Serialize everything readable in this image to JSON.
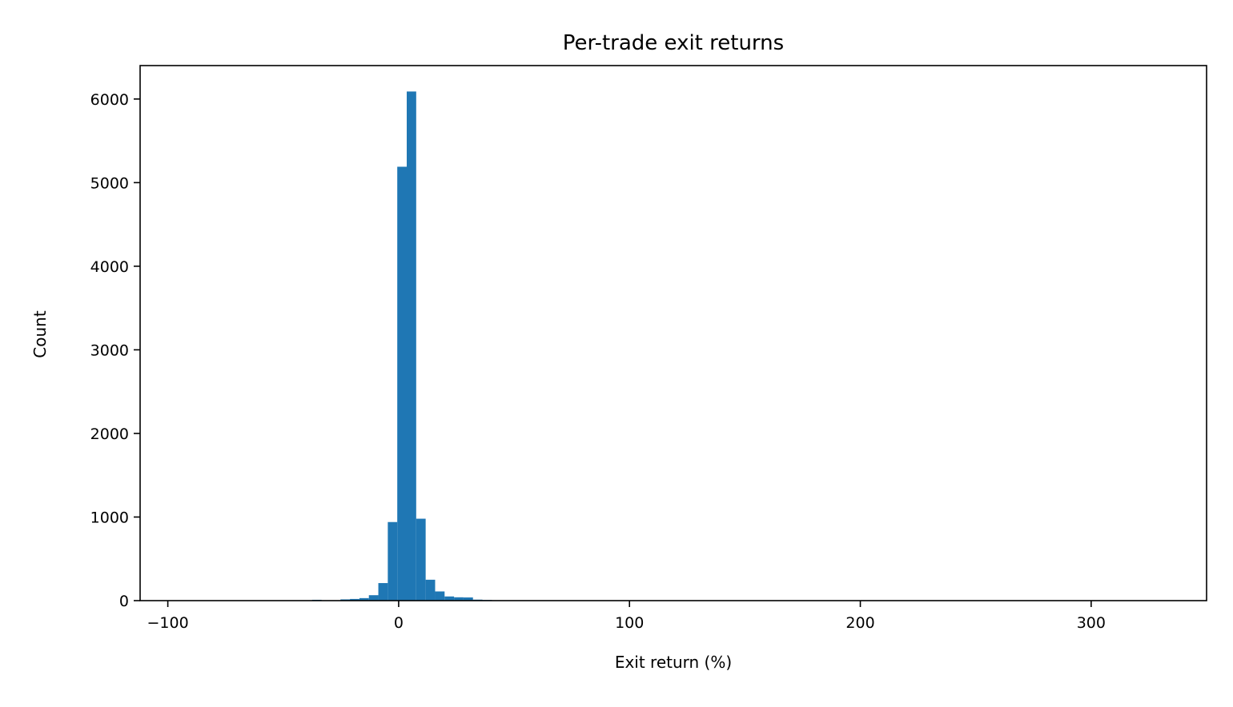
{
  "chart_data": {
    "type": "bar",
    "title": "Per-trade exit returns",
    "xlabel": "Exit return (%)",
    "ylabel": "Count",
    "xlim": [
      -112,
      350
    ],
    "ylim": [
      0,
      6400
    ],
    "xticks": [
      {
        "value": -100,
        "label": "−100"
      },
      {
        "value": 0,
        "label": "0"
      },
      {
        "value": 100,
        "label": "100"
      },
      {
        "value": 200,
        "label": "200"
      },
      {
        "value": 300,
        "label": "300"
      }
    ],
    "yticks": [
      {
        "value": 0,
        "label": "0"
      },
      {
        "value": 1000,
        "label": "1000"
      },
      {
        "value": 2000,
        "label": "2000"
      },
      {
        "value": 3000,
        "label": "3000"
      },
      {
        "value": 4000,
        "label": "4000"
      },
      {
        "value": 5000,
        "label": "5000"
      },
      {
        "value": 6000,
        "label": "6000"
      }
    ],
    "grid": false,
    "bar_color": "#1f77b4",
    "bin_width": 4.1,
    "bins": [
      {
        "x0": -100.0,
        "count": 2
      },
      {
        "x0": -37.5,
        "count": 10
      },
      {
        "x0": -25.2,
        "count": 15
      },
      {
        "x0": -21.1,
        "count": 20
      },
      {
        "x0": -17.0,
        "count": 30
      },
      {
        "x0": -12.9,
        "count": 65
      },
      {
        "x0": -8.8,
        "count": 210
      },
      {
        "x0": -4.7,
        "count": 940
      },
      {
        "x0": -0.6,
        "count": 5190
      },
      {
        "x0": 3.5,
        "count": 6090
      },
      {
        "x0": 7.6,
        "count": 980
      },
      {
        "x0": 11.7,
        "count": 250
      },
      {
        "x0": 15.8,
        "count": 110
      },
      {
        "x0": 19.9,
        "count": 50
      },
      {
        "x0": 24.0,
        "count": 40
      },
      {
        "x0": 28.1,
        "count": 38
      },
      {
        "x0": 32.2,
        "count": 12
      },
      {
        "x0": 36.3,
        "count": 8
      },
      {
        "x0": 40.4,
        "count": 5
      },
      {
        "x0": 44.5,
        "count": 4
      },
      {
        "x0": 48.6,
        "count": 3
      },
      {
        "x0": 52.7,
        "count": 5
      },
      {
        "x0": 56.8,
        "count": 3
      },
      {
        "x0": 60.9,
        "count": 2
      },
      {
        "x0": 65.0,
        "count": 2
      },
      {
        "x0": 69.1,
        "count": 2
      },
      {
        "x0": 85.5,
        "count": 1
      },
      {
        "x0": 123.0,
        "count": 1
      },
      {
        "x0": 326.0,
        "count": 1
      }
    ]
  }
}
